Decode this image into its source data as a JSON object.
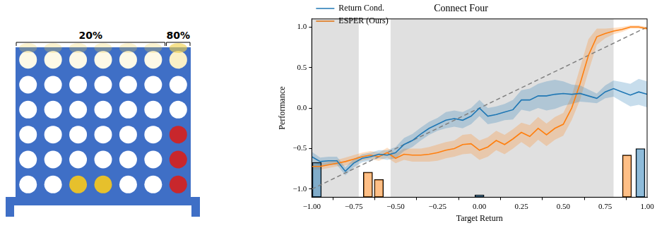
{
  "board": {
    "columns": 7,
    "rows": 6,
    "red": [
      [
        7,
        4
      ],
      [
        7,
        5
      ],
      [
        7,
        6
      ]
    ],
    "yellow": [
      [
        3,
        6
      ],
      [
        4,
        6
      ]
    ],
    "move_probabilities": [
      {
        "columns": [
          1,
          6
        ],
        "value": 20,
        "label": "20%"
      },
      {
        "columns": [
          7,
          7
        ],
        "value": 80,
        "label": "80%"
      }
    ]
  },
  "chart_data": {
    "type": "line",
    "title": "Connect Four",
    "x_label": "Target Return",
    "y_label": "Performance",
    "xlim": [
      -1,
      1
    ],
    "xticks": [
      {
        "value": -1,
        "label": "−1.00"
      },
      {
        "value": -0.75,
        "label": "−0.75"
      },
      {
        "value": -0.5,
        "label": "−0.50"
      },
      {
        "value": -0.25,
        "label": "−0.25"
      },
      {
        "value": 0,
        "label": "0.00"
      },
      {
        "value": 0.25,
        "label": "0.25"
      },
      {
        "value": 0.5,
        "label": "0.50"
      },
      {
        "value": 0.75,
        "label": "0.75"
      },
      {
        "value": 1,
        "label": "1.00"
      }
    ],
    "ylim": [
      -1.1,
      1.1
    ],
    "yticks": [
      {
        "value": -1,
        "label": "−1.0"
      },
      {
        "value": -0.5,
        "label": "−0.5"
      },
      {
        "value": 0,
        "label": "0.0"
      },
      {
        "value": 0.5,
        "label": "0.5"
      },
      {
        "value": 1,
        "label": "1.0"
      }
    ],
    "grid": false,
    "legend": "upper left",
    "shaded_x_ranges": [
      [
        -1,
        -0.72
      ],
      [
        -0.53,
        0.8
      ]
    ],
    "x": [
      -1,
      -0.95,
      -0.9,
      -0.85,
      -0.8,
      -0.75,
      -0.7,
      -0.65,
      -0.6,
      -0.55,
      -0.5,
      -0.45,
      -0.4,
      -0.35,
      -0.3,
      -0.25,
      -0.2,
      -0.15,
      -0.1,
      -0.05,
      0,
      0.05,
      0.1,
      0.15,
      0.2,
      0.25,
      0.3,
      0.35,
      0.4,
      0.45,
      0.5,
      0.55,
      0.6,
      0.65,
      0.7,
      0.75,
      0.8,
      0.85,
      0.9,
      0.95,
      1
    ],
    "series": [
      {
        "name": "Return Cond.",
        "color": "#1f77b4",
        "values": [
          -0.6,
          -0.66,
          -0.65,
          -0.65,
          -0.78,
          -0.68,
          -0.62,
          -0.6,
          -0.57,
          -0.58,
          -0.55,
          -0.45,
          -0.4,
          -0.32,
          -0.25,
          -0.2,
          -0.15,
          -0.13,
          -0.15,
          -0.1,
          0.0,
          -0.1,
          -0.08,
          -0.05,
          -0.02,
          0.1,
          0.1,
          0.15,
          0.15,
          0.17,
          0.18,
          0.17,
          0.18,
          0.15,
          0.12,
          0.2,
          0.24,
          0.2,
          0.16,
          0.2,
          0.17
        ],
        "lower": [
          -0.66,
          -0.71,
          -0.7,
          -0.7,
          -0.83,
          -0.73,
          -0.67,
          -0.65,
          -0.62,
          -0.64,
          -0.62,
          -0.53,
          -0.48,
          -0.4,
          -0.33,
          -0.28,
          -0.25,
          -0.23,
          -0.25,
          -0.2,
          -0.1,
          -0.2,
          -0.18,
          -0.15,
          -0.14,
          -0.02,
          -0.04,
          0.0,
          -0.03,
          -0.01,
          0.03,
          0.05,
          0.08,
          0.07,
          0.06,
          0.12,
          0.14,
          0.08,
          0.02,
          0.04,
          0.01
        ],
        "upper": [
          -0.54,
          -0.61,
          -0.6,
          -0.6,
          -0.73,
          -0.63,
          -0.57,
          -0.55,
          -0.52,
          -0.52,
          -0.48,
          -0.37,
          -0.32,
          -0.24,
          -0.17,
          -0.12,
          -0.05,
          -0.03,
          -0.05,
          0.0,
          0.1,
          0.0,
          0.02,
          0.05,
          0.1,
          0.22,
          0.24,
          0.3,
          0.33,
          0.35,
          0.33,
          0.29,
          0.28,
          0.23,
          0.18,
          0.28,
          0.34,
          0.32,
          0.3,
          0.36,
          0.33
        ]
      },
      {
        "name": "ESPER (Ours)",
        "color": "#ff7f0e",
        "values": [
          -0.72,
          -0.72,
          -0.7,
          -0.68,
          -0.66,
          -0.63,
          -0.6,
          -0.58,
          -0.6,
          -0.55,
          -0.62,
          -0.57,
          -0.58,
          -0.58,
          -0.57,
          -0.55,
          -0.52,
          -0.5,
          -0.45,
          -0.44,
          -0.52,
          -0.48,
          -0.4,
          -0.45,
          -0.38,
          -0.3,
          -0.35,
          -0.25,
          -0.33,
          -0.25,
          -0.2,
          0.0,
          0.3,
          0.65,
          0.88,
          0.92,
          0.95,
          0.97,
          1.0,
          1.0,
          0.98
        ],
        "lower": [
          -0.76,
          -0.76,
          -0.74,
          -0.72,
          -0.71,
          -0.68,
          -0.65,
          -0.63,
          -0.65,
          -0.61,
          -0.68,
          -0.64,
          -0.66,
          -0.66,
          -0.66,
          -0.65,
          -0.62,
          -0.6,
          -0.57,
          -0.56,
          -0.64,
          -0.6,
          -0.52,
          -0.57,
          -0.5,
          -0.42,
          -0.49,
          -0.39,
          -0.47,
          -0.39,
          -0.34,
          -0.15,
          0.1,
          0.45,
          0.78,
          0.86,
          0.91,
          0.94,
          0.98,
          0.98,
          0.96
        ],
        "upper": [
          -0.68,
          -0.68,
          -0.66,
          -0.64,
          -0.61,
          -0.58,
          -0.55,
          -0.53,
          -0.55,
          -0.49,
          -0.56,
          -0.5,
          -0.5,
          -0.5,
          -0.48,
          -0.45,
          -0.42,
          -0.4,
          -0.33,
          -0.32,
          -0.4,
          -0.36,
          -0.28,
          -0.33,
          -0.26,
          -0.18,
          -0.21,
          -0.11,
          -0.19,
          -0.11,
          -0.06,
          0.15,
          0.5,
          0.85,
          0.98,
          0.98,
          0.99,
          1.0,
          1.02,
          1.02,
          1.0
        ]
      }
    ],
    "reference_line": {
      "x": [
        -1,
        1
      ],
      "values": [
        -1,
        1
      ],
      "color": "#808080",
      "line_style": "dashed"
    },
    "histogram": [
      {
        "color": "#1f77b4",
        "x": [
          -0.97,
          0.0,
          0.96
        ],
        "values": [
          -0.67,
          -1.07,
          -0.5
        ]
      },
      {
        "color": "#ff7f0e",
        "x": [
          -0.665,
          -0.6,
          0.88
        ],
        "values": [
          -0.79,
          -0.88,
          -0.58
        ]
      }
    ]
  }
}
